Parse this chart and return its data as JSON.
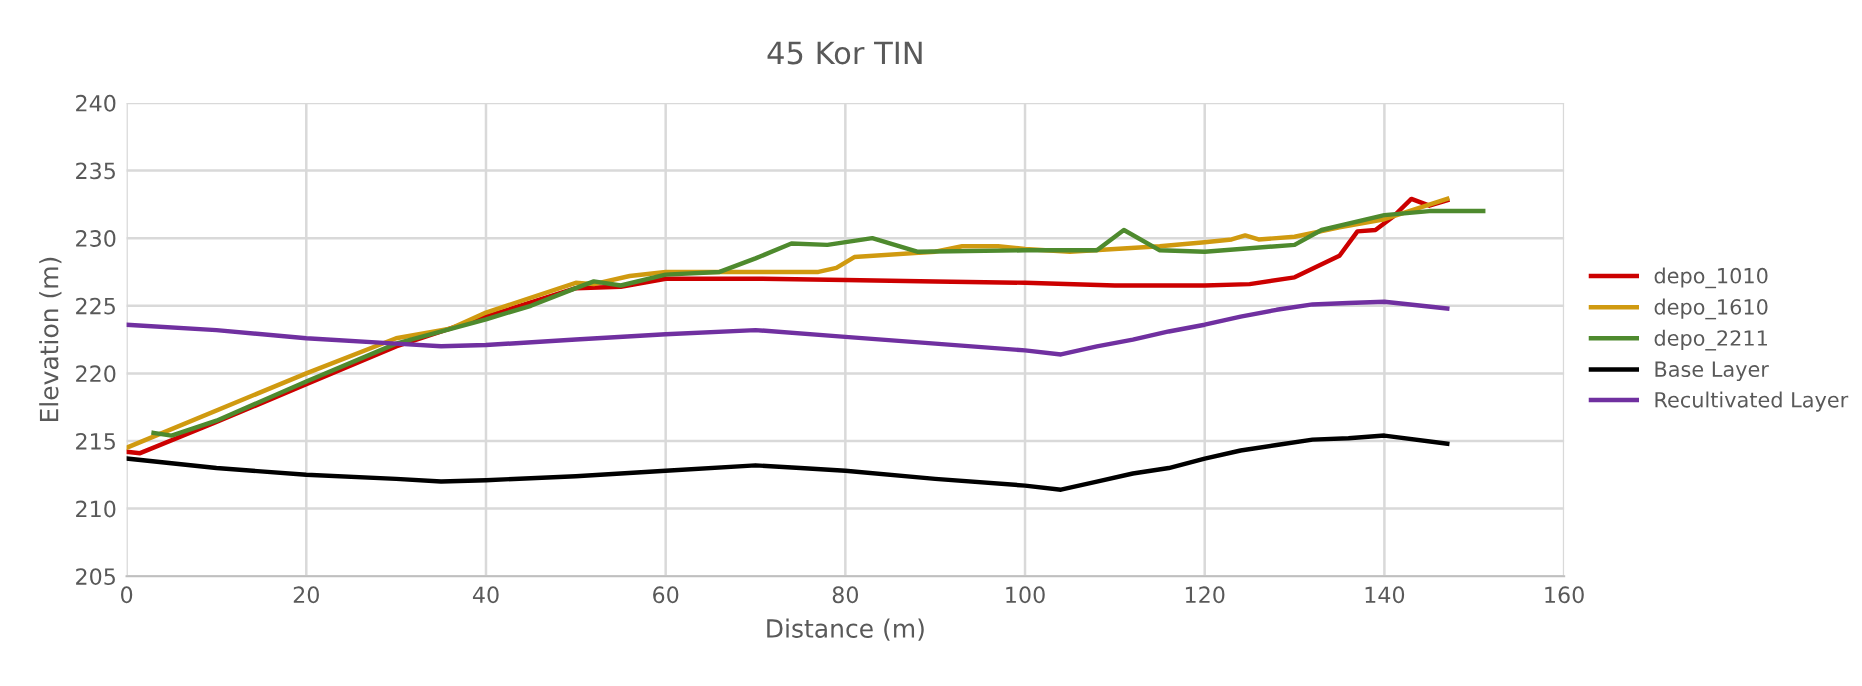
{
  "chart_data": {
    "type": "line",
    "title": "45 Kor TIN",
    "xlabel": "Distance (m)",
    "ylabel": "Elevation (m)",
    "xlim": [
      0,
      160
    ],
    "xticks": [
      0,
      20,
      40,
      60,
      80,
      100,
      120,
      140,
      160
    ],
    "ylim": [
      205,
      240
    ],
    "yticks": [
      205,
      210,
      215,
      220,
      225,
      230,
      235,
      240
    ],
    "grid": true,
    "legend": "right",
    "marker": "none",
    "line_style": "solid",
    "series": [
      {
        "name": "depo_1010",
        "color": "#cc0000",
        "x": [
          0,
          1.5,
          10,
          20,
          30,
          40,
          50,
          55,
          60,
          70,
          80,
          90,
          100,
          110,
          120,
          125,
          130,
          135,
          137,
          139,
          141,
          143,
          145,
          147
        ],
        "values": [
          214.2,
          214.1,
          216.4,
          219.2,
          222.0,
          224.2,
          226.3,
          226.4,
          227.0,
          227.0,
          226.9,
          226.8,
          226.7,
          226.5,
          226.5,
          226.6,
          227.1,
          228.7,
          230.5,
          230.6,
          231.6,
          232.9,
          232.4,
          232.8
        ]
      },
      {
        "name": "depo_1610",
        "color": "#d09a10",
        "x": [
          0,
          20,
          30,
          36,
          40,
          50,
          52,
          56,
          60,
          70,
          77,
          79,
          81,
          90,
          93,
          97,
          100,
          105,
          115,
          120,
          123,
          124.5,
          126,
          130,
          135,
          140,
          147
        ],
        "values": [
          214.5,
          220.0,
          222.6,
          223.3,
          224.5,
          226.7,
          226.6,
          227.2,
          227.5,
          227.5,
          227.5,
          227.8,
          228.6,
          229.0,
          229.4,
          229.4,
          229.2,
          229.0,
          229.4,
          229.7,
          229.9,
          230.2,
          229.9,
          230.1,
          230.8,
          231.4,
          232.9
        ]
      },
      {
        "name": "depo_2211",
        "color": "#4e8a2e",
        "x": [
          3,
          5,
          10,
          20,
          30,
          40,
          45,
          50,
          52,
          55,
          60,
          66,
          70,
          74,
          78,
          83,
          88,
          100,
          108,
          111,
          115,
          120,
          130,
          133,
          140,
          145,
          151
        ],
        "values": [
          215.6,
          215.4,
          216.5,
          219.4,
          222.2,
          224.0,
          225.0,
          226.3,
          226.8,
          226.5,
          227.3,
          227.5,
          228.5,
          229.6,
          229.5,
          230.0,
          229.0,
          229.1,
          229.1,
          230.6,
          229.1,
          229.0,
          229.5,
          230.6,
          231.7,
          232.0,
          232.0
        ]
      },
      {
        "name": "Base Layer",
        "color": "#000000",
        "x": [
          0,
          10,
          20,
          30,
          35,
          40,
          50,
          60,
          70,
          75,
          80,
          90,
          100,
          104,
          108,
          112,
          116,
          120,
          124,
          128,
          132,
          136,
          140,
          147
        ],
        "values": [
          213.7,
          213.0,
          212.5,
          212.2,
          212.0,
          212.1,
          212.4,
          212.8,
          213.2,
          213.0,
          212.8,
          212.2,
          211.7,
          211.4,
          212.0,
          212.6,
          213.0,
          213.7,
          214.3,
          214.7,
          215.1,
          215.2,
          215.4,
          214.8
        ]
      },
      {
        "name": "Recultivated Layer",
        "color": "#7030a0",
        "x": [
          0,
          10,
          20,
          30,
          35,
          40,
          50,
          60,
          70,
          80,
          90,
          100,
          104,
          108,
          112,
          116,
          120,
          124,
          128,
          132,
          136,
          140,
          147
        ],
        "values": [
          223.6,
          223.2,
          222.6,
          222.2,
          222.0,
          222.1,
          222.5,
          222.9,
          223.2,
          222.7,
          222.2,
          221.7,
          221.4,
          222.0,
          222.5,
          223.1,
          223.6,
          224.2,
          224.7,
          225.1,
          225.2,
          225.3,
          224.8
        ]
      }
    ]
  }
}
